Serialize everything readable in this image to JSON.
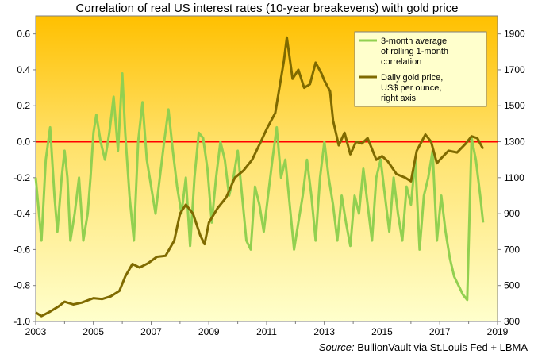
{
  "chart_data": {
    "type": "line",
    "title": "Correlation of real US interest rates (10-year breakevens) with gold price",
    "source_label": "Source:",
    "source_text": "BullionVault via  St.Louis Fed + LBMA",
    "x_ticks": [
      "2003",
      "2005",
      "2007",
      "2009",
      "2011",
      "2013",
      "2015",
      "2017",
      "2019"
    ],
    "xlim": [
      2003,
      2019
    ],
    "left_axis": {
      "ticks": [
        "0.6",
        "0.4",
        "0.2",
        "0.0",
        "-0.2",
        "-0.4",
        "-0.6",
        "-0.8",
        "-1.0"
      ],
      "ylim": [
        -1.0,
        0.7
      ]
    },
    "right_axis": {
      "ticks": [
        "1900",
        "1700",
        "1500",
        "1300",
        "1100",
        "900",
        "700",
        "500",
        "300"
      ],
      "ylim": [
        300,
        2000
      ]
    },
    "zero_line": 0.0,
    "colors": {
      "correlation": "#92d050",
      "gold": "#7f6a00",
      "zero_line": "#ff0000",
      "bg_top": "#ffc000",
      "bg_bottom": "#ffffcc"
    },
    "series": [
      {
        "name": "3-month average of rolling 1-month correlation",
        "legend_lines": [
          "3-month average",
          "of rolling 1-month",
          "correlation"
        ],
        "axis": "left",
        "x": [
          2003.0,
          2003.2,
          2003.35,
          2003.5,
          2003.65,
          2003.75,
          2003.9,
          2004.0,
          2004.1,
          2004.2,
          2004.35,
          2004.5,
          2004.65,
          2004.8,
          2004.9,
          2005.0,
          2005.1,
          2005.25,
          2005.4,
          2005.55,
          2005.7,
          2005.85,
          2006.0,
          2006.1,
          2006.25,
          2006.4,
          2006.55,
          2006.7,
          2006.85,
          2007.0,
          2007.15,
          2007.3,
          2007.45,
          2007.6,
          2007.75,
          2007.9,
          2008.05,
          2008.2,
          2008.35,
          2008.5,
          2008.65,
          2008.8,
          2008.95,
          2009.1,
          2009.25,
          2009.4,
          2009.55,
          2009.7,
          2009.85,
          2010.0,
          2010.15,
          2010.3,
          2010.45,
          2010.6,
          2010.75,
          2010.9,
          2011.05,
          2011.2,
          2011.35,
          2011.5,
          2011.65,
          2011.8,
          2011.95,
          2012.1,
          2012.25,
          2012.4,
          2012.55,
          2012.7,
          2012.85,
          2013.0,
          2013.15,
          2013.3,
          2013.45,
          2013.6,
          2013.75,
          2013.9,
          2014.05,
          2014.2,
          2014.35,
          2014.5,
          2014.65,
          2014.8,
          2014.95,
          2015.1,
          2015.25,
          2015.4,
          2015.55,
          2015.7,
          2015.85,
          2016.0,
          2016.15,
          2016.3,
          2016.45,
          2016.6,
          2016.75,
          2016.9,
          2017.05,
          2017.2,
          2017.35,
          2017.5,
          2017.65,
          2017.8,
          2017.95,
          2018.1,
          2018.25,
          2018.4,
          2018.5
        ],
        "values": [
          -0.2,
          -0.55,
          -0.1,
          0.08,
          -0.3,
          -0.5,
          -0.2,
          -0.05,
          -0.2,
          -0.55,
          -0.4,
          -0.2,
          -0.55,
          -0.4,
          -0.2,
          0.05,
          0.15,
          0.0,
          -0.1,
          0.05,
          0.25,
          -0.05,
          0.38,
          0.05,
          -0.3,
          -0.55,
          0.0,
          0.22,
          -0.1,
          -0.25,
          -0.4,
          -0.2,
          0.0,
          0.18,
          -0.05,
          -0.25,
          -0.4,
          -0.2,
          -0.58,
          -0.2,
          0.05,
          0.02,
          -0.15,
          -0.45,
          -0.2,
          0.0,
          -0.1,
          -0.3,
          -0.2,
          -0.05,
          -0.3,
          -0.55,
          -0.6,
          -0.25,
          -0.35,
          -0.5,
          -0.3,
          -0.1,
          0.08,
          -0.2,
          -0.1,
          -0.35,
          -0.6,
          -0.45,
          -0.3,
          -0.1,
          -0.3,
          -0.55,
          -0.2,
          0.0,
          -0.2,
          -0.35,
          -0.55,
          -0.3,
          -0.45,
          -0.58,
          -0.3,
          -0.4,
          -0.15,
          -0.35,
          -0.55,
          -0.2,
          -0.1,
          -0.3,
          -0.5,
          -0.2,
          -0.4,
          -0.55,
          -0.25,
          -0.35,
          -0.1,
          -0.6,
          -0.3,
          -0.2,
          -0.05,
          -0.55,
          -0.3,
          -0.5,
          -0.65,
          -0.75,
          -0.8,
          -0.85,
          -0.88,
          0.02,
          -0.1,
          -0.3,
          -0.45
        ]
      },
      {
        "name": "Daily gold price, US$ per ounce, right axis",
        "legend_lines": [
          "Daily gold price,",
          "US$ per ounce,",
          "right axis"
        ],
        "axis": "right",
        "x": [
          2003.0,
          2003.2,
          2003.5,
          2003.8,
          2004.0,
          2004.3,
          2004.6,
          2005.0,
          2005.3,
          2005.6,
          2005.9,
          2006.1,
          2006.35,
          2006.6,
          2006.9,
          2007.2,
          2007.5,
          2007.8,
          2008.0,
          2008.2,
          2008.45,
          2008.7,
          2008.85,
          2009.0,
          2009.3,
          2009.6,
          2009.9,
          2010.2,
          2010.5,
          2010.8,
          2011.0,
          2011.3,
          2011.6,
          2011.7,
          2011.9,
          2012.1,
          2012.3,
          2012.5,
          2012.7,
          2012.9,
          2013.0,
          2013.2,
          2013.3,
          2013.5,
          2013.7,
          2013.9,
          2014.1,
          2014.3,
          2014.5,
          2014.8,
          2015.0,
          2015.2,
          2015.5,
          2015.8,
          2016.0,
          2016.2,
          2016.5,
          2016.7,
          2016.9,
          2017.0,
          2017.3,
          2017.6,
          2017.9,
          2018.1,
          2018.3,
          2018.5
        ],
        "values": [
          350,
          330,
          355,
          385,
          410,
          395,
          405,
          430,
          425,
          440,
          470,
          550,
          620,
          600,
          625,
          660,
          665,
          750,
          900,
          950,
          900,
          780,
          730,
          850,
          930,
          990,
          1100,
          1140,
          1200,
          1300,
          1370,
          1460,
          1750,
          1880,
          1650,
          1700,
          1600,
          1620,
          1740,
          1680,
          1640,
          1580,
          1420,
          1280,
          1350,
          1230,
          1300,
          1290,
          1320,
          1200,
          1220,
          1190,
          1120,
          1100,
          1080,
          1250,
          1340,
          1300,
          1180,
          1200,
          1250,
          1240,
          1290,
          1330,
          1320,
          1260
        ]
      }
    ]
  }
}
